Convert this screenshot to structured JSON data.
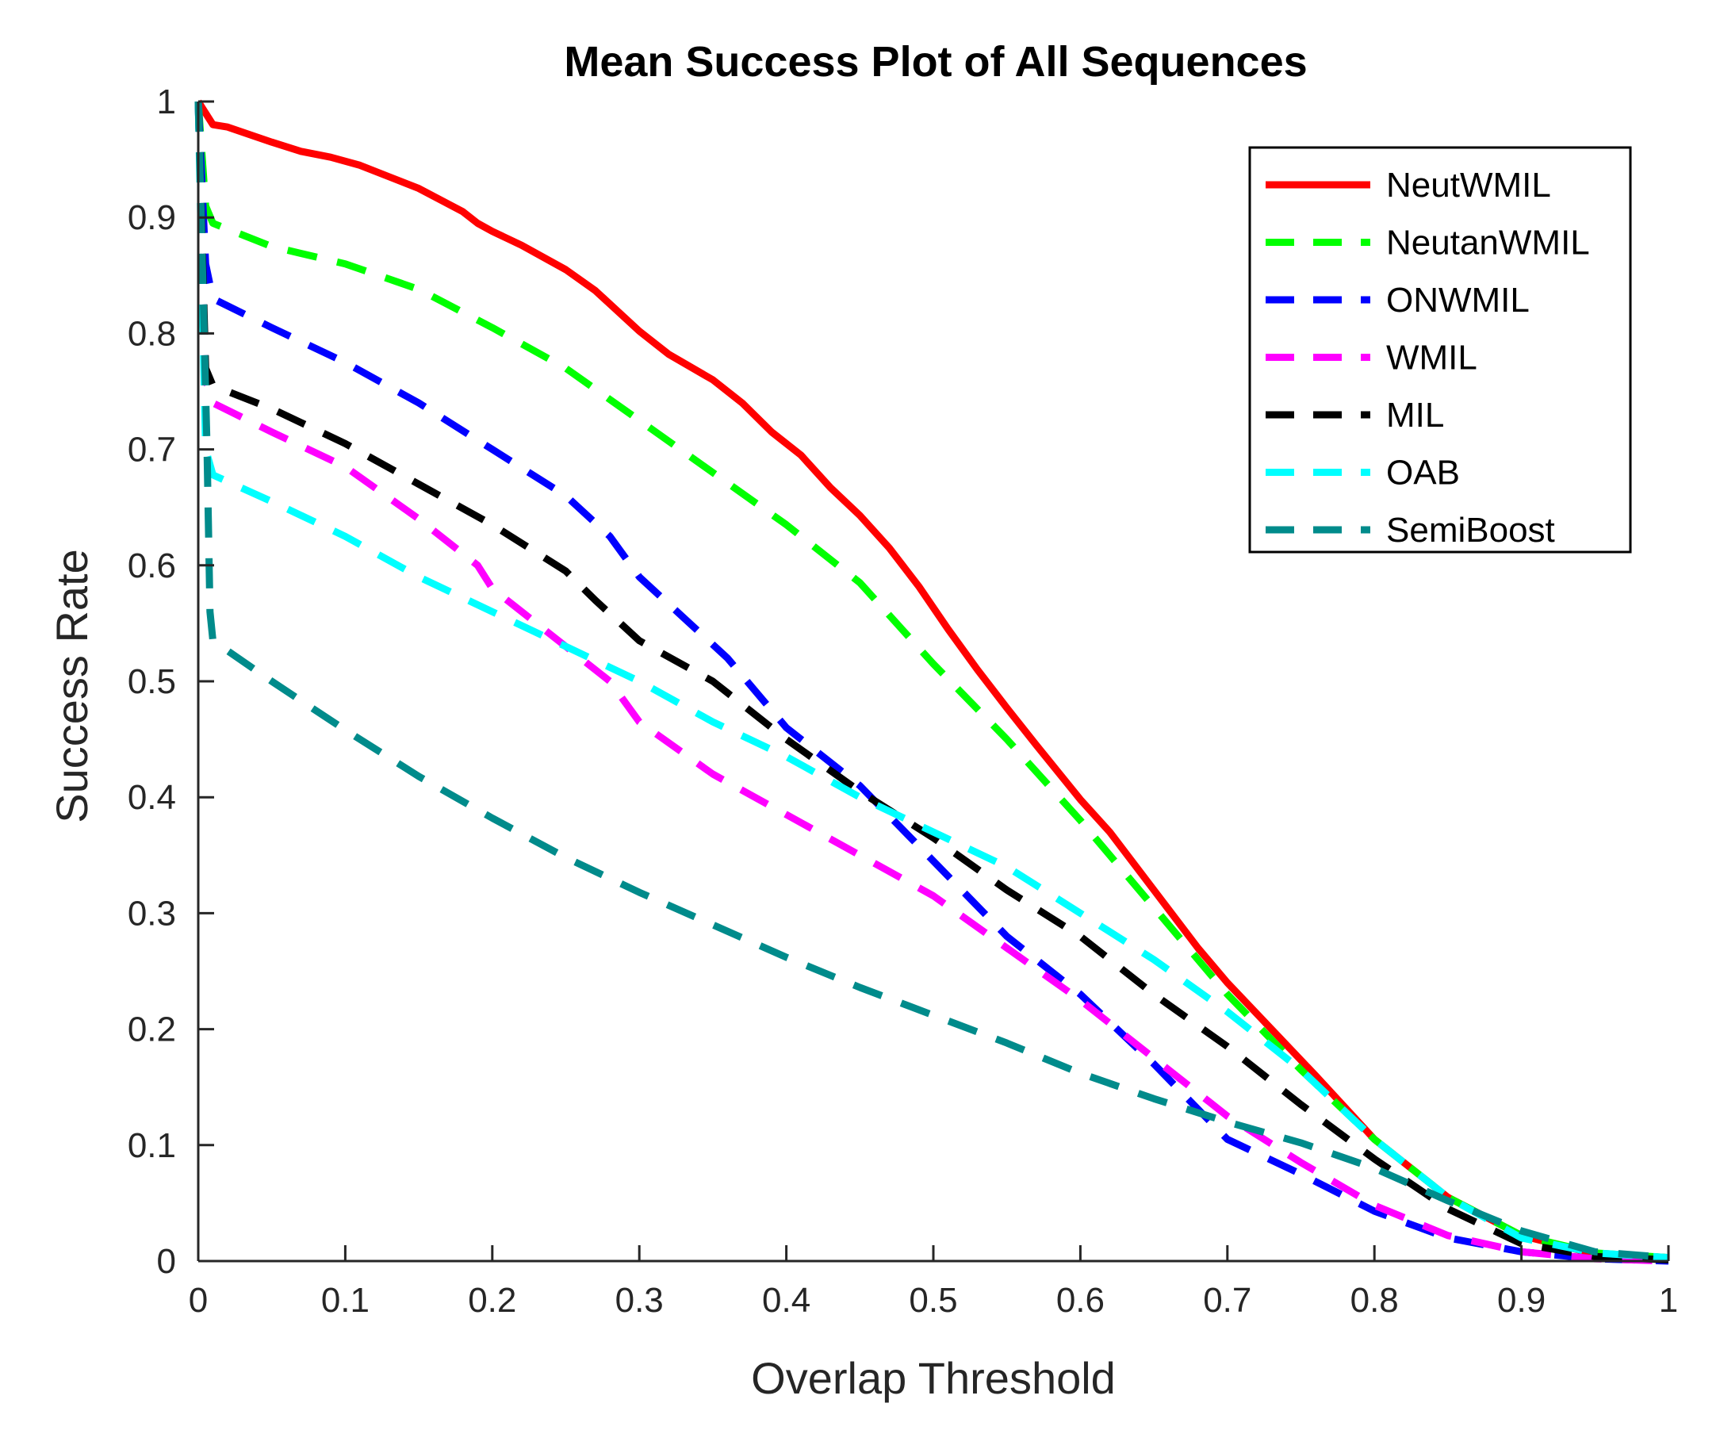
{
  "chart_data": {
    "type": "line",
    "title": "Mean Success Plot of All Sequences",
    "xlabel": "Overlap Threshold",
    "ylabel": "Success Rate",
    "xlim": [
      0,
      1
    ],
    "ylim": [
      0,
      1
    ],
    "xticks": [
      "0",
      "0.1",
      "0.2",
      "0.3",
      "0.4",
      "0.5",
      "0.6",
      "0.7",
      "0.8",
      "0.9",
      "1"
    ],
    "yticks": [
      "0",
      "0.1",
      "0.2",
      "0.3",
      "0.4",
      "0.5",
      "0.6",
      "0.7",
      "0.8",
      "0.9",
      "1"
    ],
    "legend_position": "top-right",
    "series": [
      {
        "name": "NeutWMIL",
        "color": "#ff0000",
        "style": "solid",
        "x": [
          0,
          0.01,
          0.02,
          0.05,
          0.07,
          0.09,
          0.11,
          0.13,
          0.15,
          0.18,
          0.19,
          0.2,
          0.22,
          0.25,
          0.27,
          0.3,
          0.32,
          0.35,
          0.37,
          0.39,
          0.41,
          0.43,
          0.45,
          0.47,
          0.49,
          0.51,
          0.53,
          0.55,
          0.57,
          0.6,
          0.62,
          0.65,
          0.68,
          0.7,
          0.73,
          0.76,
          0.8,
          0.85,
          0.9,
          0.95,
          1.0
        ],
        "values": [
          1.0,
          0.98,
          0.978,
          0.965,
          0.957,
          0.952,
          0.945,
          0.935,
          0.925,
          0.905,
          0.895,
          0.888,
          0.876,
          0.855,
          0.837,
          0.802,
          0.782,
          0.76,
          0.74,
          0.715,
          0.695,
          0.667,
          0.643,
          0.615,
          0.582,
          0.545,
          0.51,
          0.477,
          0.445,
          0.398,
          0.37,
          0.32,
          0.27,
          0.24,
          0.2,
          0.16,
          0.105,
          0.055,
          0.022,
          0.006,
          0.003
        ]
      },
      {
        "name": "NeutanWMIL",
        "color": "#00ff00",
        "style": "dashed",
        "x": [
          0,
          0.005,
          0.01,
          0.05,
          0.1,
          0.15,
          0.2,
          0.25,
          0.3,
          0.35,
          0.4,
          0.45,
          0.5,
          0.55,
          0.6,
          0.65,
          0.7,
          0.75,
          0.8,
          0.85,
          0.9,
          0.95,
          1.0
        ],
        "values": [
          1.0,
          0.91,
          0.895,
          0.875,
          0.86,
          0.838,
          0.805,
          0.77,
          0.725,
          0.68,
          0.635,
          0.585,
          0.515,
          0.45,
          0.38,
          0.305,
          0.23,
          0.165,
          0.105,
          0.055,
          0.022,
          0.007,
          0.003
        ]
      },
      {
        "name": "ONWMIL",
        "color": "#0000ff",
        "style": "dashed",
        "x": [
          0,
          0.005,
          0.01,
          0.05,
          0.1,
          0.15,
          0.2,
          0.25,
          0.28,
          0.3,
          0.33,
          0.36,
          0.4,
          0.45,
          0.5,
          0.55,
          0.6,
          0.65,
          0.7,
          0.75,
          0.8,
          0.85,
          0.9,
          0.95,
          1.0
        ],
        "values": [
          1.0,
          0.86,
          0.83,
          0.805,
          0.775,
          0.74,
          0.7,
          0.66,
          0.625,
          0.59,
          0.555,
          0.52,
          0.46,
          0.41,
          0.345,
          0.28,
          0.23,
          0.17,
          0.105,
          0.075,
          0.043,
          0.02,
          0.008,
          0.002,
          0.0
        ]
      },
      {
        "name": "WMIL",
        "color": "#ff00ff",
        "style": "dashed",
        "x": [
          0,
          0.005,
          0.01,
          0.05,
          0.1,
          0.15,
          0.19,
          0.2,
          0.25,
          0.28,
          0.3,
          0.35,
          0.4,
          0.45,
          0.5,
          0.55,
          0.6,
          0.65,
          0.7,
          0.75,
          0.8,
          0.85,
          0.9,
          0.95,
          1.0
        ],
        "values": [
          1.0,
          0.76,
          0.74,
          0.715,
          0.685,
          0.64,
          0.6,
          0.58,
          0.53,
          0.5,
          0.465,
          0.42,
          0.385,
          0.35,
          0.315,
          0.27,
          0.225,
          0.175,
          0.125,
          0.085,
          0.048,
          0.022,
          0.008,
          0.002,
          0.0
        ]
      },
      {
        "name": "MIL",
        "color": "#000000",
        "style": "dashed",
        "x": [
          0,
          0.005,
          0.01,
          0.05,
          0.1,
          0.15,
          0.2,
          0.25,
          0.27,
          0.3,
          0.35,
          0.4,
          0.45,
          0.5,
          0.55,
          0.6,
          0.65,
          0.7,
          0.75,
          0.8,
          0.85,
          0.9,
          0.95,
          1.0
        ],
        "values": [
          1.0,
          0.77,
          0.755,
          0.735,
          0.705,
          0.67,
          0.635,
          0.595,
          0.57,
          0.535,
          0.5,
          0.45,
          0.405,
          0.365,
          0.32,
          0.28,
          0.23,
          0.185,
          0.135,
          0.088,
          0.045,
          0.015,
          0.004,
          0.001
        ]
      },
      {
        "name": "OAB",
        "color": "#00ffff",
        "style": "dashed",
        "x": [
          0,
          0.005,
          0.01,
          0.05,
          0.1,
          0.15,
          0.2,
          0.25,
          0.3,
          0.35,
          0.4,
          0.45,
          0.5,
          0.55,
          0.6,
          0.65,
          0.7,
          0.75,
          0.8,
          0.85,
          0.9,
          0.95,
          1.0
        ],
        "values": [
          1.0,
          0.7,
          0.678,
          0.655,
          0.625,
          0.59,
          0.56,
          0.53,
          0.5,
          0.465,
          0.435,
          0.4,
          0.37,
          0.34,
          0.3,
          0.26,
          0.215,
          0.165,
          0.105,
          0.055,
          0.02,
          0.007,
          0.003
        ]
      },
      {
        "name": "SemiBoost",
        "color": "#008b8b",
        "style": "dashed",
        "x": [
          0,
          0.003,
          0.006,
          0.008,
          0.01,
          0.05,
          0.1,
          0.15,
          0.2,
          0.25,
          0.3,
          0.35,
          0.4,
          0.45,
          0.5,
          0.55,
          0.6,
          0.65,
          0.7,
          0.75,
          0.8,
          0.85,
          0.9,
          0.95,
          1.0
        ],
        "values": [
          1.0,
          0.85,
          0.7,
          0.56,
          0.535,
          0.5,
          0.458,
          0.418,
          0.382,
          0.348,
          0.318,
          0.29,
          0.262,
          0.236,
          0.212,
          0.188,
          0.162,
          0.14,
          0.12,
          0.102,
          0.08,
          0.052,
          0.026,
          0.008,
          0.003
        ]
      }
    ]
  }
}
